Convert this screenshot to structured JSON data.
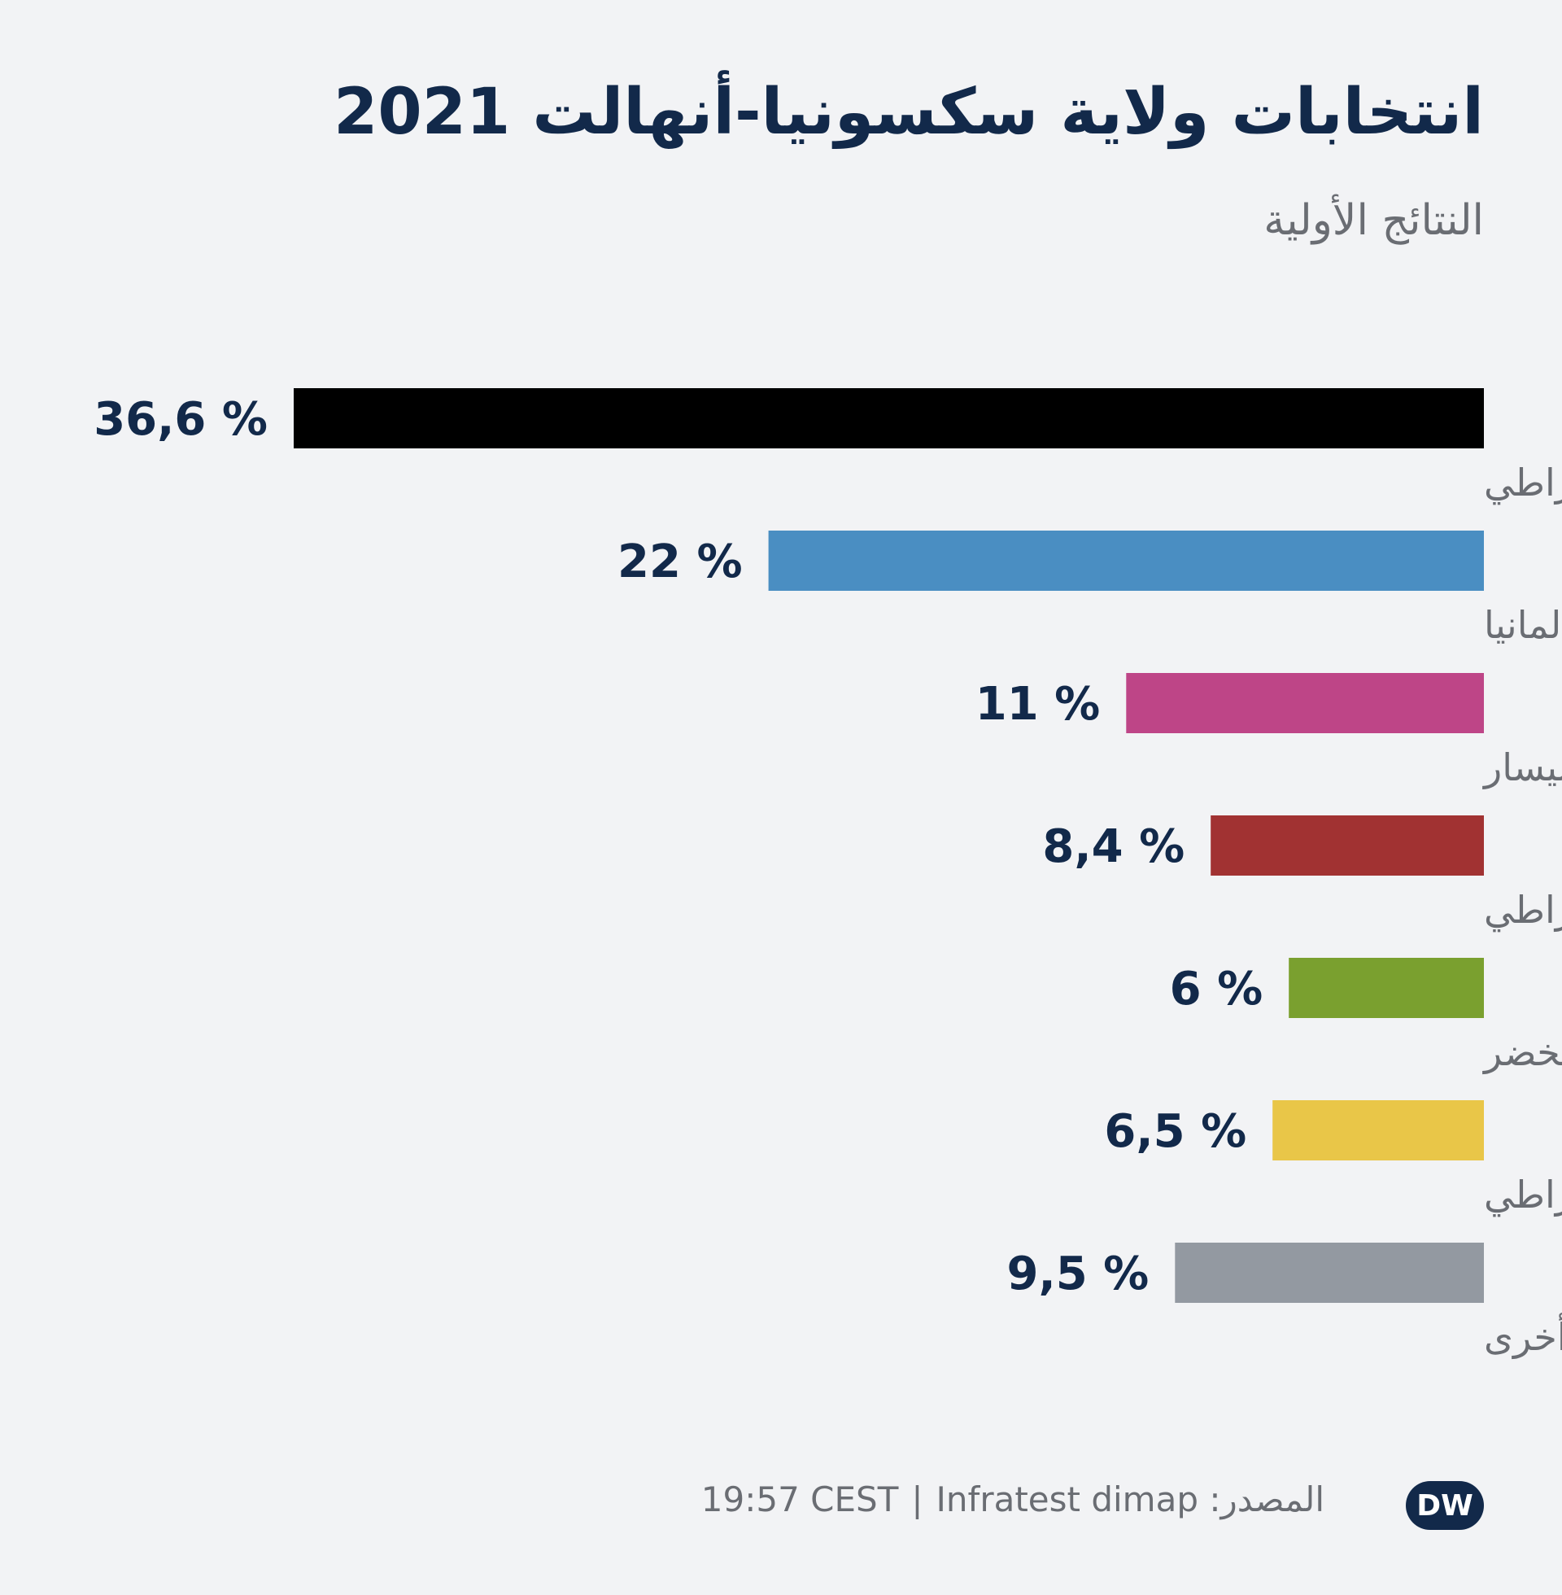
{
  "header": {
    "title": "انتخابات ولاية سكسونيا-أنهالت 2021",
    "subtitle": "النتائج الأولية"
  },
  "chart_data": {
    "type": "bar",
    "orientation": "horizontal",
    "direction": "right-to-left",
    "title": "انتخابات ولاية سكسونيا-أنهالت 2021",
    "subtitle": "النتائج الأولية",
    "xlim": [
      0,
      36.6
    ],
    "categories": [
      "الحزب المسيحي الديمقراطي",
      "البديل من أجل ألمانيا",
      "حزب اليسار",
      "الحزب الاشتراكي الديمقراطي",
      "الخضر",
      "الحزب الليبرالي الديمقراطي",
      "أخرى"
    ],
    "values": [
      36.6,
      22,
      11,
      8.4,
      6,
      6.5,
      9.5
    ],
    "value_labels": [
      "36,6 %",
      "22 %",
      "11 %",
      "8,4 %",
      "6 %",
      "6,5 %",
      "9,5 %"
    ],
    "colors": [
      "#000000",
      "#4a8ec2",
      "#be4587",
      "#a13232",
      "#7aa02f",
      "#e9c648",
      "#9399a1"
    ],
    "grid": false,
    "legend": "none"
  },
  "footer": {
    "time": "19:57 CEST",
    "separator": "|",
    "source_name": "Infratest dimap",
    "source_label": "المصدر:"
  },
  "logo": {
    "text": "DW",
    "color": "#12294a"
  }
}
